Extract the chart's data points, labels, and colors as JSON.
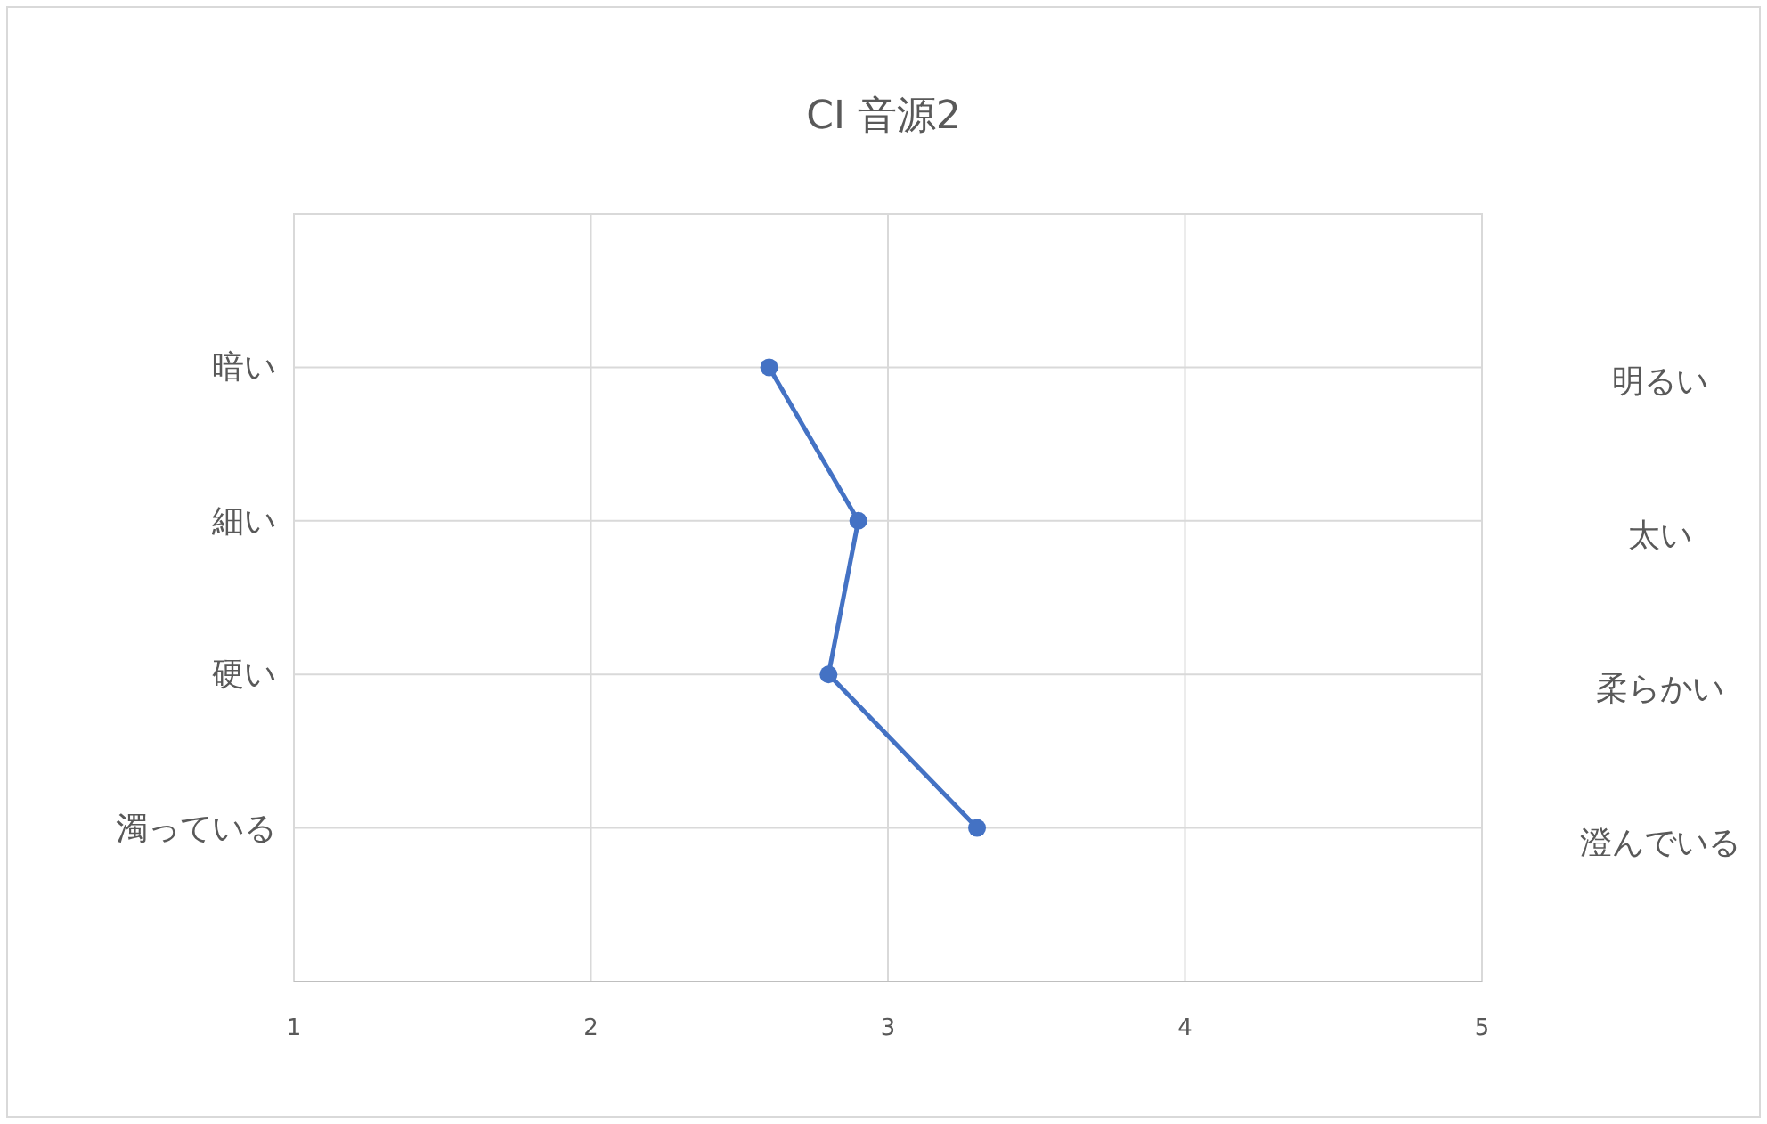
{
  "chart_data": {
    "type": "line",
    "title": "CI 音源2",
    "orientation": "horizontal",
    "categories": [
      "暗い",
      "細い",
      "硬い",
      "濁っている"
    ],
    "y2_categories": [
      "明るい",
      "太い",
      "柔らかい",
      "澄んでいる"
    ],
    "series": [
      {
        "color": "#4472c4",
        "values": [
          2.6,
          2.9,
          2.8,
          3.3
        ]
      }
    ],
    "xlim": [
      1,
      5
    ],
    "xticks": [
      1,
      2,
      3,
      4,
      5
    ],
    "grid": true,
    "marker": "circle",
    "line_style": "solid"
  }
}
